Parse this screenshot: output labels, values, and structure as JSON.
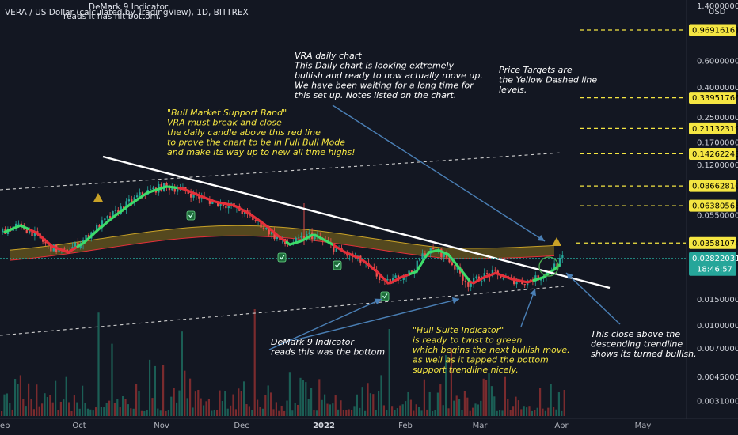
{
  "header": {
    "symbol_line": "VERA / US Dollar (calculated by TradingView), 1D, BITTREX",
    "overlay_line1": "DeMark 9 Indicator",
    "overlay_line2": "reads it has hit bottom."
  },
  "axis_unit": "USD",
  "chart_data": {
    "type": "candlestick",
    "yscale": "log",
    "ylim": [
      0.0028,
      1.4
    ],
    "x_ticks": [
      "Sep",
      "Oct",
      "Nov",
      "Dec",
      "2022",
      "Feb",
      "Mar",
      "Apr",
      "May"
    ],
    "y_ticks": [
      0.6,
      0.4,
      0.25,
      0.17,
      0.12,
      0.055,
      0.015,
      0.01,
      0.007,
      0.0045,
      0.0031
    ],
    "y_tick_labels": [
      "0.6000000",
      "0.4000000",
      "0.2500000",
      "0.1700000",
      "0.1200000",
      "0.0550000",
      "0.0150000",
      "0.0100000",
      "0.0070000",
      "0.0045000",
      "0.0031000"
    ],
    "top_tick_label": "1.4000000",
    "price_targets": [
      0.96916161,
      0.33951766,
      0.21132319,
      0.14262243,
      0.0866281,
      0.06380565,
      0.03581074
    ],
    "price_target_labels": [
      "0.96916161",
      "0.33951766",
      "0.21132319",
      "0.14262243",
      "0.08662810",
      "0.06380565",
      "0.03581074"
    ],
    "last_price": 0.02822031,
    "last_price_label": "0.02822031",
    "countdown": "18:46:57"
  },
  "annotations": {
    "vra_daily": "VRA daily chart\nThis Daily chart is looking extremely\nbullish and ready to now actually move up.\nWe have been waiting for a long time for\nthis set up. Notes listed on the chart.",
    "price_targets": "Price Targets are\nthe Yellow Dashed line\nlevels.",
    "bull_band": "\"Bull Market Support Band\"\nVRA must break and close\nthe daily candle above this red line\nto prove the chart to be in Full Bull Mode\nand make its way up to new all time highs!",
    "demark": "DeMark 9 Indicator\nreads this was the bottom",
    "hull": "\"Hull Suite Indicator\"\nis ready to twist to green\nwhich begins the next bullish move.\nas well as it tapped the bottom\nsupport trendline nicely.",
    "close_above": "This close above the\ndescending trendline\nshows its turned bullish."
  },
  "colors": {
    "background": "#131722",
    "target_line": "#f5e642",
    "last_price": "#26a69a",
    "countdown_bg": "#26a69a",
    "bull_candle": "#26a69a",
    "bear_candle": "#ef5350",
    "hull_green": "#3ddc6a",
    "hull_red": "#e5303a",
    "band_fill": "#6b5a1e",
    "trendline": "#ffffff",
    "arrow": "#4a7fb5"
  }
}
